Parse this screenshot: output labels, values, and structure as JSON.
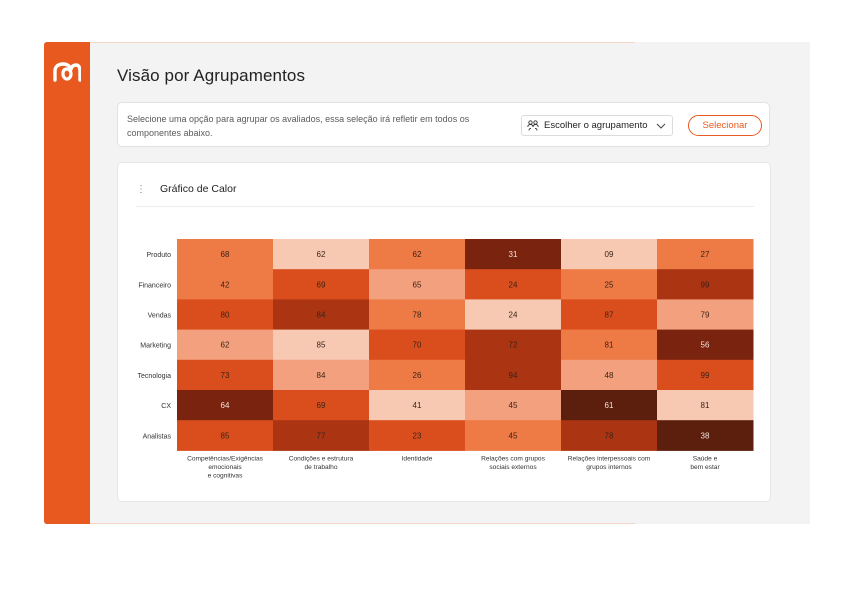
{
  "page": {
    "title": "Visão por Agrupamentos"
  },
  "selector": {
    "description": "Selecione uma opção para agrupar os avaliados, essa seleção irá refletir em todos os componentes abaixo.",
    "dropdown_label": "Escolher o agrupamento",
    "dropdown_icon": "group-icon",
    "button_label": "Selecionar"
  },
  "chart": {
    "title": "Gráfico de Calor"
  },
  "colors": {
    "accent": "#e8591f",
    "scale": [
      "#f7c9b2",
      "#f2a07d",
      "#ee7a45",
      "#d94e1c",
      "#ab3513",
      "#7a2410",
      "#5c1f0d"
    ]
  },
  "chart_data": {
    "type": "heatmap",
    "title": "Gráfico de Calor",
    "rows": [
      "Produto",
      "Financeiro",
      "Vendas",
      "Marketing",
      "Tecnologia",
      "CX",
      "Analistas"
    ],
    "columns": [
      [
        "Competências/Exigências",
        "emocionais",
        "e cognitivas"
      ],
      [
        "Condições e estrutura",
        "de trabalho"
      ],
      [
        "Identidade"
      ],
      [
        "Relações com grupos",
        "sociais externos"
      ],
      [
        "Relações interpessoais com",
        "grupos internos"
      ],
      [
        "Saúde e",
        "bem estar"
      ]
    ],
    "values": [
      [
        68,
        62,
        62,
        31,
        9,
        27
      ],
      [
        42,
        69,
        65,
        24,
        25,
        99
      ],
      [
        80,
        84,
        78,
        24,
        87,
        79
      ],
      [
        62,
        85,
        70,
        72,
        81,
        56
      ],
      [
        73,
        84,
        26,
        94,
        48,
        99
      ],
      [
        64,
        69,
        41,
        45,
        61,
        81
      ],
      [
        85,
        77,
        23,
        45,
        78,
        38
      ]
    ],
    "labels": [
      [
        "68",
        "62",
        "62",
        "31",
        "09",
        "27"
      ],
      [
        "42",
        "69",
        "65",
        "24",
        "25",
        "99"
      ],
      [
        "80",
        "84",
        "78",
        "24",
        "87",
        "79"
      ],
      [
        "62",
        "85",
        "70",
        "72",
        "81",
        "56"
      ],
      [
        "73",
        "84",
        "26",
        "94",
        "48",
        "99"
      ],
      [
        "64",
        "69",
        "41",
        "45",
        "61",
        "81"
      ],
      [
        "85",
        "77",
        "23",
        "45",
        "78",
        "38"
      ]
    ],
    "cell_shade": [
      [
        2,
        0,
        2,
        5,
        0,
        2
      ],
      [
        2,
        3,
        1,
        3,
        2,
        4
      ],
      [
        3,
        4,
        2,
        0,
        3,
        1
      ],
      [
        1,
        0,
        3,
        4,
        2,
        5
      ],
      [
        3,
        1,
        2,
        4,
        1,
        3
      ],
      [
        5,
        3,
        0,
        1,
        6,
        0
      ],
      [
        3,
        4,
        3,
        2,
        4,
        6
      ]
    ]
  }
}
